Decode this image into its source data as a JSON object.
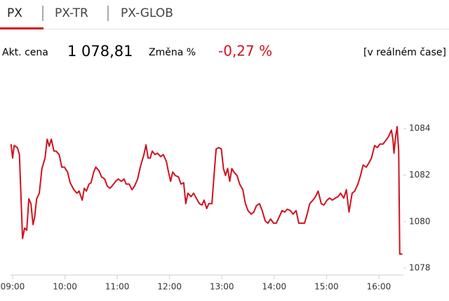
{
  "tabs": [
    "PX",
    "PX-TR",
    "PX-GLOB"
  ],
  "info": {
    "price_label": "Akt. cena",
    "price": "1 078,81",
    "change_label": "Změna %",
    "change": "-0,27 %",
    "realtime": "[v reálném čase]"
  },
  "chart_data": {
    "type": "line",
    "color": "#d0121f",
    "x": [
      8.97,
      9.0,
      9.03,
      9.09,
      9.13,
      9.19,
      9.23,
      9.27,
      9.31,
      9.35,
      9.39,
      9.42,
      9.46,
      9.51,
      9.56,
      9.62,
      9.66,
      9.7,
      9.74,
      9.79,
      9.83,
      9.89,
      9.94,
      9.99,
      10.05,
      10.1,
      10.17,
      10.23,
      10.27,
      10.33,
      10.37,
      10.41,
      10.46,
      10.5,
      10.55,
      10.59,
      10.65,
      10.7,
      10.76,
      10.81,
      10.86,
      10.92,
      10.97,
      11.02,
      11.08,
      11.13,
      11.17,
      11.23,
      11.28,
      11.33,
      11.39,
      11.44,
      11.51,
      11.55,
      11.59,
      11.63,
      11.67,
      11.72,
      11.77,
      11.83,
      11.88,
      11.94,
      11.98,
      12.02,
      12.06,
      12.11,
      12.17,
      12.22,
      12.27,
      12.31,
      12.35,
      12.41,
      12.46,
      12.51,
      12.57,
      12.62,
      12.66,
      12.71,
      12.75,
      12.81,
      12.85,
      12.89,
      12.94,
      12.99,
      13.03,
      13.07,
      13.11,
      13.15,
      13.19,
      13.23,
      13.29,
      13.34,
      13.4,
      13.45,
      13.5,
      13.56,
      13.61,
      13.66,
      13.72,
      13.77,
      13.83,
      13.88,
      13.93,
      13.99,
      14.04,
      14.09,
      14.15,
      14.2,
      14.25,
      14.31,
      14.36,
      14.42,
      14.47,
      14.52,
      14.58,
      14.63,
      14.68,
      14.74,
      14.79,
      14.84,
      14.9,
      14.95,
      15.01,
      15.06,
      15.11,
      15.17,
      15.22,
      15.27,
      15.33,
      15.38,
      15.43,
      15.49,
      15.54,
      15.6,
      15.65,
      15.7,
      15.76,
      15.81,
      15.86,
      15.92,
      15.97,
      16.02,
      16.08,
      16.13,
      16.18,
      16.24,
      16.27,
      16.29,
      16.32,
      16.35,
      16.38,
      16.4,
      16.45
    ],
    "values": [
      1083.33,
      1082.73,
      1083.27,
      1083.18,
      1082.88,
      1079.27,
      1079.72,
      1079.63,
      1080.98,
      1080.77,
      1079.87,
      1080.17,
      1080.98,
      1081.22,
      1082.28,
      1082.73,
      1083.54,
      1083.24,
      1083.54,
      1083.03,
      1083.03,
      1082.88,
      1082.34,
      1082.34,
      1082.13,
      1081.67,
      1081.37,
      1081.22,
      1081.31,
      1080.92,
      1081.43,
      1081.31,
      1081.61,
      1081.67,
      1082.13,
      1082.34,
      1082.19,
      1081.92,
      1081.83,
      1081.52,
      1081.43,
      1081.58,
      1081.73,
      1081.83,
      1081.73,
      1081.83,
      1081.61,
      1081.61,
      1081.37,
      1081.52,
      1081.83,
      1082.34,
      1082.88,
      1083.3,
      1082.73,
      1082.73,
      1083.03,
      1082.88,
      1082.94,
      1082.79,
      1082.88,
      1082.58,
      1082.13,
      1081.73,
      1082.13,
      1081.98,
      1081.92,
      1081.61,
      1081.67,
      1080.77,
      1081.22,
      1081.07,
      1081.22,
      1081.01,
      1080.77,
      1080.71,
      1080.92,
      1080.56,
      1080.77,
      1080.77,
      1081.98,
      1083.12,
      1083.18,
      1083.12,
      1082.28,
      1081.98,
      1082.28,
      1081.73,
      1082.28,
      1082.13,
      1081.98,
      1081.61,
      1081.37,
      1080.77,
      1080.47,
      1080.32,
      1080.41,
      1080.68,
      1080.77,
      1080.47,
      1080.02,
      1079.93,
      1080.11,
      1079.93,
      1079.93,
      1080.17,
      1080.47,
      1080.41,
      1080.53,
      1080.47,
      1080.32,
      1080.47,
      1079.93,
      1079.93,
      1079.93,
      1080.32,
      1080.77,
      1080.92,
      1081.07,
      1081.31,
      1080.77,
      1080.71,
      1080.92,
      1081.01,
      1080.92,
      1081.01,
      1081.07,
      1081.22,
      1081.01,
      1081.37,
      1080.41,
      1081.22,
      1081.31,
      1081.61,
      1081.98,
      1082.43,
      1082.34,
      1082.52,
      1082.73,
      1083.27,
      1083.18,
      1083.33,
      1083.33,
      1083.48,
      1083.63,
      1083.93,
      1083.54,
      1082.94,
      1083.63,
      1084.08,
      1083.03,
      1078.6,
      1078.6
    ],
    "xlim": [
      8.96,
      16.47
    ],
    "xticks": [
      {
        "value": 9,
        "label": "09:00"
      },
      {
        "value": 10,
        "label": "10:00"
      },
      {
        "value": 11,
        "label": "11:00"
      },
      {
        "value": 12,
        "label": "12:00"
      },
      {
        "value": 13,
        "label": "13:00"
      },
      {
        "value": 14,
        "label": "14:00"
      },
      {
        "value": 15,
        "label": "15:00"
      },
      {
        "value": 16,
        "label": "16:00"
      }
    ],
    "ylim": [
      1077.7,
      1084.7
    ],
    "yticks": [
      1078,
      1080,
      1082,
      1084
    ]
  }
}
